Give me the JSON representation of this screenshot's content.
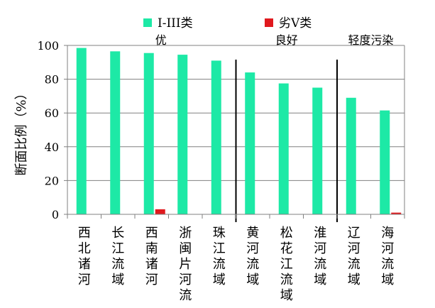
{
  "chart_data": {
    "type": "bar",
    "ylabel": "断面比例（%）",
    "ylim": [
      0,
      100
    ],
    "yticks": [
      0,
      20,
      40,
      60,
      80,
      100
    ],
    "grid": true,
    "legend_position": "top",
    "categories": [
      "西北诸河",
      "长江流域",
      "西南诸河",
      "浙闽片河流",
      "珠江流域",
      "黄河流域",
      "松花江流域",
      "淮河流域",
      "辽河流域",
      "海河流域"
    ],
    "series": [
      {
        "name": "I-III类",
        "color": "#1de9a6",
        "values": [
          98.5,
          96.5,
          95.5,
          94.5,
          91,
          84,
          77.5,
          75,
          69,
          61.5
        ]
      },
      {
        "name": "劣V类",
        "color": "#e0191e",
        "values": [
          0,
          0,
          3,
          0,
          0,
          0,
          0,
          0,
          0,
          1
        ]
      }
    ],
    "groups": [
      {
        "label": "优",
        "from": 0,
        "to": 4
      },
      {
        "label": "良好",
        "from": 5,
        "to": 7
      },
      {
        "label": "轻度污染",
        "from": 8,
        "to": 9
      }
    ]
  }
}
